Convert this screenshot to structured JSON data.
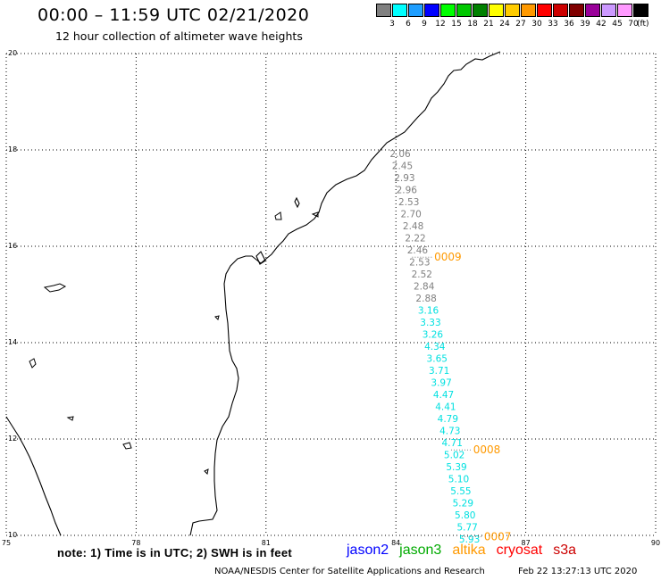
{
  "header": {
    "title": "00:00 – 11:59 UTC 02/21/2020",
    "subtitle": "12 hour collection of altimeter wave heights"
  },
  "color_legend": {
    "unit": "(ft)",
    "items": [
      {
        "label": "3",
        "color": "#808080"
      },
      {
        "label": "6",
        "color": "#00ffff"
      },
      {
        "label": "9",
        "color": "#1e9eff"
      },
      {
        "label": "12",
        "color": "#0000ff"
      },
      {
        "label": "15",
        "color": "#00ff00"
      },
      {
        "label": "18",
        "color": "#00c800"
      },
      {
        "label": "21",
        "color": "#008000"
      },
      {
        "label": "24",
        "color": "#ffff00"
      },
      {
        "label": "27",
        "color": "#ffcc00"
      },
      {
        "label": "30",
        "color": "#ff9900"
      },
      {
        "label": "33",
        "color": "#ff0000"
      },
      {
        "label": "36",
        "color": "#cc0000"
      },
      {
        "label": "39",
        "color": "#800000"
      },
      {
        "label": "42",
        "color": "#990099"
      },
      {
        "label": "45",
        "color": "#cc99ff"
      },
      {
        "label": "70",
        "color": "#ff99ff"
      },
      {
        "label": "",
        "color": "#000000"
      }
    ]
  },
  "map": {
    "lon_range": [
      75,
      90
    ],
    "lat_range": [
      10,
      20
    ],
    "lon_ticks": [
      "75",
      "78",
      "81",
      "84",
      "87",
      "90"
    ],
    "lat_ticks": [
      "10",
      "12",
      "14",
      "16",
      "18",
      "20"
    ],
    "grid": "dotted",
    "colors": {
      "gray_track": "#808080",
      "cyan_track": "#00e0e0",
      "time_label": "#ff9900"
    }
  },
  "observations": [
    {
      "lon": 84.1,
      "lat": 17.85,
      "swh": "2.06",
      "color": "#808080"
    },
    {
      "lon": 84.15,
      "lat": 17.6,
      "swh": "2.45",
      "color": "#808080"
    },
    {
      "lon": 84.2,
      "lat": 17.35,
      "swh": "2.93",
      "color": "#808080"
    },
    {
      "lon": 84.25,
      "lat": 17.1,
      "swh": "2.96",
      "color": "#808080"
    },
    {
      "lon": 84.3,
      "lat": 16.85,
      "swh": "2.53",
      "color": "#808080"
    },
    {
      "lon": 84.35,
      "lat": 16.6,
      "swh": "2.70",
      "color": "#808080"
    },
    {
      "lon": 84.4,
      "lat": 16.35,
      "swh": "2.48",
      "color": "#808080"
    },
    {
      "lon": 84.45,
      "lat": 16.1,
      "swh": "2.22",
      "color": "#808080"
    },
    {
      "lon": 84.5,
      "lat": 15.85,
      "swh": "2.46",
      "color": "#808080"
    },
    {
      "lon": 84.55,
      "lat": 15.6,
      "swh": "2.53",
      "color": "#808080"
    },
    {
      "lon": 84.6,
      "lat": 15.35,
      "swh": "2.52",
      "color": "#808080"
    },
    {
      "lon": 84.65,
      "lat": 15.1,
      "swh": "2.84",
      "color": "#808080"
    },
    {
      "lon": 84.7,
      "lat": 14.85,
      "swh": "2.88",
      "color": "#808080"
    },
    {
      "lon": 84.75,
      "lat": 14.6,
      "swh": "3.16",
      "color": "#00e0e0"
    },
    {
      "lon": 84.8,
      "lat": 14.35,
      "swh": "3.33",
      "color": "#00e0e0"
    },
    {
      "lon": 84.85,
      "lat": 14.1,
      "swh": "3.26",
      "color": "#00e0e0"
    },
    {
      "lon": 84.9,
      "lat": 13.85,
      "swh": "4.34",
      "color": "#00e0e0"
    },
    {
      "lon": 84.95,
      "lat": 13.6,
      "swh": "3.65",
      "color": "#00e0e0"
    },
    {
      "lon": 85.0,
      "lat": 13.35,
      "swh": "3.71",
      "color": "#00e0e0"
    },
    {
      "lon": 85.05,
      "lat": 13.1,
      "swh": "3.97",
      "color": "#00e0e0"
    },
    {
      "lon": 85.1,
      "lat": 12.85,
      "swh": "4.47",
      "color": "#00e0e0"
    },
    {
      "lon": 85.15,
      "lat": 12.6,
      "swh": "4.41",
      "color": "#00e0e0"
    },
    {
      "lon": 85.2,
      "lat": 12.35,
      "swh": "4.79",
      "color": "#00e0e0"
    },
    {
      "lon": 85.25,
      "lat": 12.1,
      "swh": "4.73",
      "color": "#00e0e0"
    },
    {
      "lon": 85.3,
      "lat": 11.85,
      "swh": "4.71",
      "color": "#00e0e0"
    },
    {
      "lon": 85.35,
      "lat": 11.6,
      "swh": "5.02",
      "color": "#00e0e0"
    },
    {
      "lon": 85.4,
      "lat": 11.35,
      "swh": "5.39",
      "color": "#00e0e0"
    },
    {
      "lon": 85.45,
      "lat": 11.1,
      "swh": "5.10",
      "color": "#00e0e0"
    },
    {
      "lon": 85.5,
      "lat": 10.85,
      "swh": "5.55",
      "color": "#00e0e0"
    },
    {
      "lon": 85.55,
      "lat": 10.6,
      "swh": "5.29",
      "color": "#00e0e0"
    },
    {
      "lon": 85.6,
      "lat": 10.35,
      "swh": "5.80",
      "color": "#00e0e0"
    },
    {
      "lon": 85.65,
      "lat": 10.1,
      "swh": "5.77",
      "color": "#00e0e0"
    },
    {
      "lon": 85.7,
      "lat": 9.85,
      "swh": "5.93",
      "color": "#00e0e0"
    }
  ],
  "time_labels": [
    {
      "lon": 85.2,
      "lat": 15.7,
      "text": "0009"
    },
    {
      "lon": 86.1,
      "lat": 11.7,
      "text": "0008"
    },
    {
      "lon": 86.35,
      "lat": 9.9,
      "text": "0007"
    }
  ],
  "footer": {
    "note": "note:  1) Time is in UTC;  2) SWH is in feet",
    "satellites": [
      {
        "name": "jason2",
        "color": "#0000ff"
      },
      {
        "name": "jason3",
        "color": "#00aa00"
      },
      {
        "name": "altika",
        "color": "#ff9900"
      },
      {
        "name": "cryosat",
        "color": "#ff0000"
      },
      {
        "name": "s3a",
        "color": "#cc0000"
      }
    ],
    "credit": "NOAA/NESDIS Center for Satellite Applications and Research",
    "timestamp": "Feb 22 13:27:13 UTC 2020"
  }
}
